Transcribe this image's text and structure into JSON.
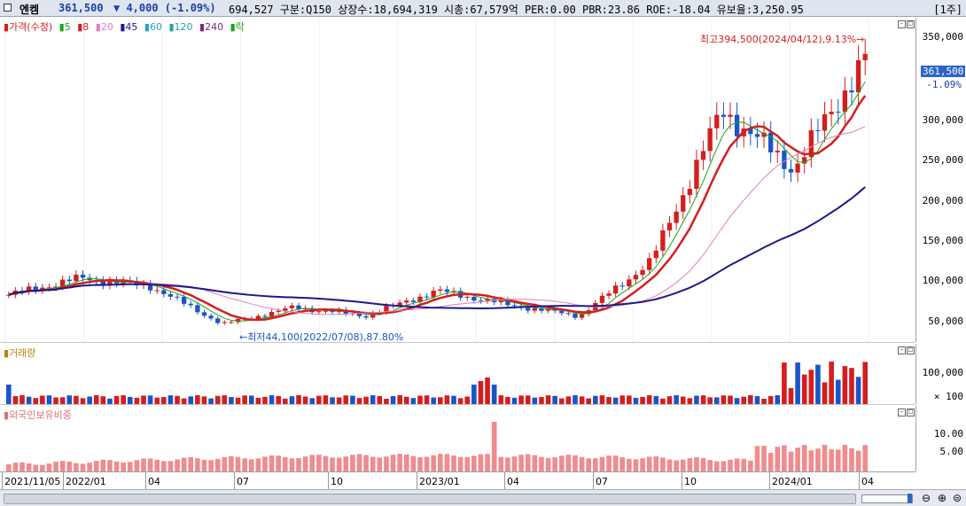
{
  "header": {
    "name": "엔켐",
    "price": "361,500",
    "change": "▼ 4,000 (-1.09%)",
    "details": "694,527 구분:Q150 상장수:18,694,319 시총:67,579억 PER:0.00 PBR:23.86 ROE:-18.04 유보율:3,250.95",
    "period": "[1주]"
  },
  "price_panel": {
    "legend": [
      {
        "label": "가격(수정)",
        "color": "#d41e1e"
      },
      {
        "label": "5",
        "color": "#1aa51a"
      },
      {
        "label": "8",
        "color": "#d41e1e"
      },
      {
        "label": "20",
        "color": "#e07ec0"
      },
      {
        "label": "45",
        "color": "#1a1a8c"
      },
      {
        "label": "60",
        "color": "#2aa0c8"
      },
      {
        "label": "120",
        "color": "#2aa0a0"
      },
      {
        "label": "240",
        "color": "#7a2a7a"
      },
      {
        "label": "락",
        "color": "#1aa51a"
      }
    ],
    "high_annotation": "최고394,500(2024/04/12),9.13%→",
    "low_annotation": "←최저44,100(2022/07/08),87.80%",
    "axis_ticks": [
      "350,000",
      "300,000",
      "250,000",
      "200,000",
      "150,000",
      "100,000",
      "50,000"
    ],
    "current_price": "361,500",
    "current_change": "-1.09%"
  },
  "volume_panel": {
    "title": "거래량",
    "axis_ticks": [
      "100,000",
      "× 100"
    ]
  },
  "foreign_panel": {
    "title": "외국인보유비중",
    "axis_ticks": [
      "10.00",
      "5.00"
    ]
  },
  "x_axis": {
    "labels": [
      "2021/11/05",
      "2022/01",
      "04",
      "07",
      "10",
      "2023/01",
      "04",
      "07",
      "10",
      "2024/01",
      "04"
    ]
  },
  "chart_data": {
    "type": "candlestick",
    "title": "",
    "ylabel": "",
    "ylim": [
      30000,
      400000
    ],
    "weekly_close_sample": [
      {
        "x": "2021/11/05",
        "close": 80000
      },
      {
        "x": "2022/01",
        "close": 100000
      },
      {
        "x": "2022/04",
        "close": 90000
      },
      {
        "x": "2022/07",
        "close": 45000
      },
      {
        "x": "2022/10",
        "close": 65000
      },
      {
        "x": "2023/01",
        "close": 55000
      },
      {
        "x": "2023/04",
        "close": 85000
      },
      {
        "x": "2023/07",
        "close": 68000
      },
      {
        "x": "2023/10",
        "close": 55000
      },
      {
        "x": "2024/01",
        "close": 120000
      },
      {
        "x": "2024/02",
        "close": 300000
      },
      {
        "x": "2024/03",
        "close": 230000
      },
      {
        "x": "2024/04",
        "close": 361500
      }
    ],
    "high": {
      "date": "2024/04/12",
      "value": 394500
    },
    "low": {
      "date": "2022/07/08",
      "value": 44100
    },
    "colors": {
      "up": "#d41e1e",
      "down": "#1a55c8"
    }
  }
}
